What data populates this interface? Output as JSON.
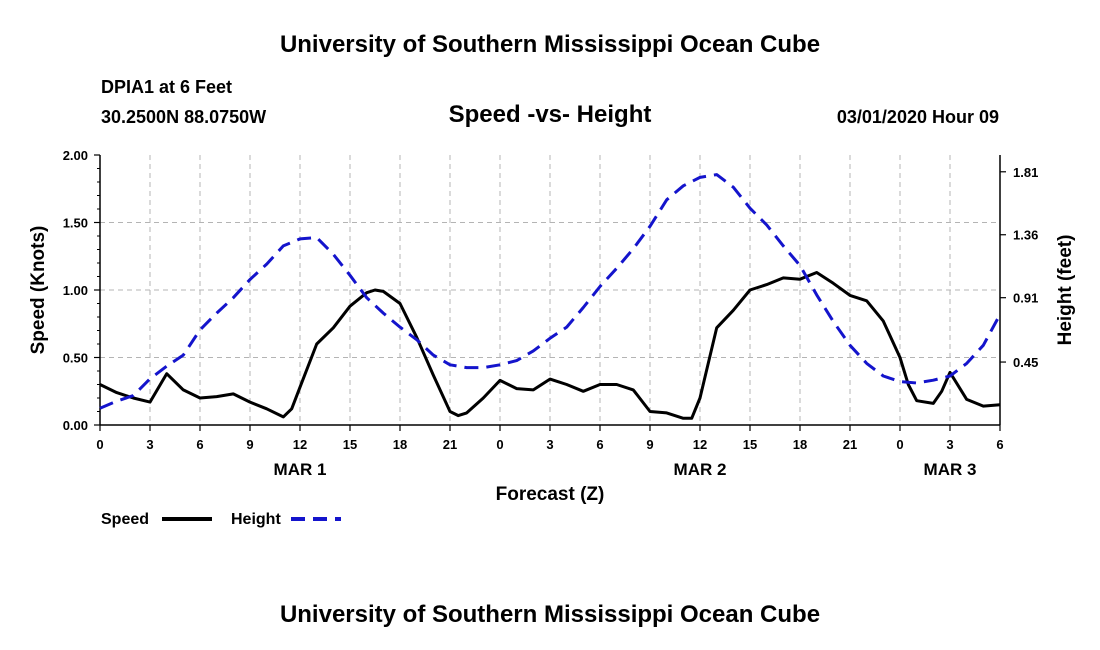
{
  "header": {
    "title": "University of Southern Mississippi Ocean Cube",
    "station": "DPIA1 at 6 Feet",
    "coords": "30.2500N 88.0750W",
    "subtitle": "Speed -vs- Height",
    "datetime": "03/01/2020 Hour 09"
  },
  "footer": {
    "title": "University of Southern Mississippi Ocean Cube"
  },
  "colors": {
    "speed": "#000000",
    "height": "#1414cc",
    "grid": "#b4b4b4"
  },
  "chart_data": {
    "type": "line",
    "title": "Speed -vs- Height",
    "xlabel": "Forecast (Z)",
    "ylabel": "Speed (Knots)",
    "y2label": "Height (feet)",
    "xlim": [
      0,
      54
    ],
    "ylim": [
      0,
      2
    ],
    "y2lim": [
      0,
      1.93
    ],
    "x_ticks": [
      0,
      3,
      6,
      9,
      12,
      15,
      18,
      21,
      24,
      27,
      30,
      33,
      36,
      39,
      42,
      45,
      48,
      51,
      54
    ],
    "x_tick_labels": [
      "0",
      "3",
      "6",
      "9",
      "12",
      "15",
      "18",
      "21",
      "0",
      "3",
      "6",
      "9",
      "12",
      "15",
      "18",
      "21",
      "0",
      "3",
      "6"
    ],
    "y_ticks": [
      0,
      0.5,
      1,
      1.5,
      2
    ],
    "y_tick_labels": [
      "0.00",
      "0.50",
      "1.00",
      "1.50",
      "2.00"
    ],
    "y2_ticks": [
      0.45,
      0.91,
      1.36,
      1.81
    ],
    "y2_tick_labels": [
      "0.45",
      "0.91",
      "1.36",
      "1.81"
    ],
    "day_labels": [
      {
        "label": "MAR 1",
        "x": 12
      },
      {
        "label": "MAR 2",
        "x": 36
      },
      {
        "label": "MAR 3",
        "x": 51
      }
    ],
    "grid": true,
    "series": [
      {
        "name": "Speed",
        "axis": "left",
        "style": "solid",
        "x": [
          0,
          1,
          2,
          3,
          4,
          5,
          6,
          7,
          8,
          9,
          10,
          11,
          11.5,
          12,
          13,
          14,
          15,
          16,
          16.5,
          17,
          18,
          19,
          20,
          21,
          21.5,
          22,
          23,
          24,
          25,
          26,
          27,
          28,
          29,
          30,
          31,
          32,
          33,
          34,
          35,
          35.5,
          36,
          37,
          38,
          39,
          40,
          41,
          42,
          43,
          44,
          45,
          46,
          47,
          48,
          48.5,
          49,
          50,
          50.5,
          51,
          52,
          53,
          54
        ],
        "y": [
          0.3,
          0.24,
          0.2,
          0.17,
          0.38,
          0.26,
          0.2,
          0.21,
          0.23,
          0.17,
          0.12,
          0.06,
          0.12,
          0.28,
          0.6,
          0.72,
          0.88,
          0.98,
          1.0,
          0.99,
          0.9,
          0.65,
          0.37,
          0.1,
          0.07,
          0.09,
          0.2,
          0.33,
          0.27,
          0.26,
          0.34,
          0.3,
          0.25,
          0.3,
          0.3,
          0.26,
          0.1,
          0.09,
          0.05,
          0.05,
          0.2,
          0.72,
          0.85,
          1.0,
          1.04,
          1.09,
          1.08,
          1.13,
          1.05,
          0.96,
          0.92,
          0.77,
          0.5,
          0.3,
          0.18,
          0.16,
          0.25,
          0.39,
          0.19,
          0.14,
          0.15
        ]
      },
      {
        "name": "Height",
        "axis": "right",
        "style": "dashed",
        "x": [
          0,
          1,
          2,
          3,
          4,
          5,
          6,
          7,
          8,
          9,
          10,
          11,
          12,
          13,
          14,
          15,
          16,
          17,
          18,
          19,
          20,
          21,
          22,
          23,
          24,
          25,
          26,
          27,
          28,
          29,
          30,
          31,
          32,
          33,
          34,
          35,
          36,
          37,
          38,
          39,
          40,
          41,
          42,
          43,
          44,
          45,
          46,
          47,
          48,
          49,
          50,
          51,
          52,
          53,
          54
        ],
        "y": [
          0.12,
          0.17,
          0.21,
          0.33,
          0.42,
          0.5,
          0.68,
          0.8,
          0.91,
          1.04,
          1.15,
          1.28,
          1.33,
          1.34,
          1.22,
          1.07,
          0.91,
          0.8,
          0.7,
          0.61,
          0.5,
          0.43,
          0.41,
          0.41,
          0.43,
          0.46,
          0.53,
          0.62,
          0.7,
          0.84,
          0.99,
          1.12,
          1.26,
          1.42,
          1.61,
          1.71,
          1.77,
          1.79,
          1.7,
          1.55,
          1.43,
          1.28,
          1.14,
          0.93,
          0.74,
          0.57,
          0.44,
          0.35,
          0.31,
          0.3,
          0.32,
          0.35,
          0.44,
          0.57,
          0.79
        ]
      }
    ],
    "legend": [
      {
        "name": "Speed",
        "style": "solid"
      },
      {
        "name": "Height",
        "style": "dashed"
      }
    ]
  }
}
